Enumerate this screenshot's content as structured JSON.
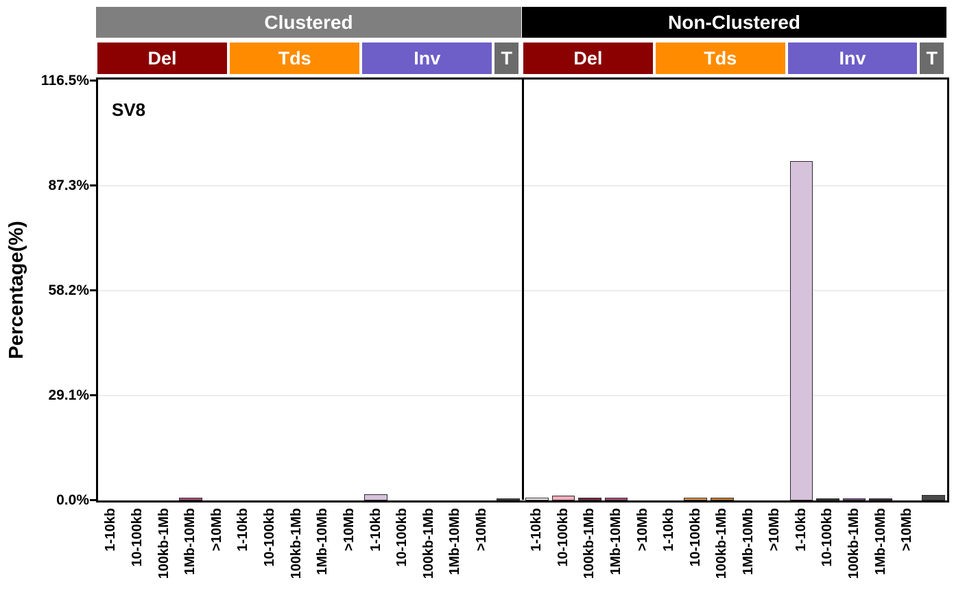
{
  "chart_data": {
    "type": "bar",
    "title": "SV8",
    "ylabel": "Percentage(%)",
    "ylim": [
      0,
      116.5
    ],
    "grid": "horizontal-light",
    "legend": "none",
    "ytick_labels": [
      "0.0%",
      "29.1%",
      "58.2%",
      "87.3%",
      "116.5%"
    ],
    "ytick_values": [
      0,
      29.1,
      58.2,
      87.3,
      116.5
    ],
    "size_bins": [
      "1-10kb",
      "10-100kb",
      "100kb-1Mb",
      "1Mb-10Mb",
      ">10Mb"
    ],
    "bar_outline_color": "#2B2B2B",
    "gridline_color": "#ECECEC",
    "bar_fill_palettes": {
      "Del": [
        "#F7F2F2",
        "#F9AFBC",
        "#7E2844",
        "#BA4E88",
        "#D87FAC"
      ],
      "Tds": [
        "#F8E3C3",
        "#E89B4C",
        "#D8842F",
        "#C06A20",
        "#A85515"
      ],
      "Inv": [
        "#D6C2DB",
        "#3A3A3A",
        "#8A63A0",
        "#4A2F63",
        "#4C2B66"
      ],
      "T": [
        "#4A4A4A"
      ]
    },
    "panels": [
      {
        "label": "Clustered",
        "header_color": "#7F7F7F",
        "groups": [
          {
            "label": "Del",
            "header_color": "#8B0000",
            "values": [
              0,
              0,
              0,
              0.3,
              0
            ]
          },
          {
            "label": "Tds",
            "header_color": "#FF8C00",
            "values": [
              0,
              0,
              0,
              0,
              0
            ]
          },
          {
            "label": "Inv",
            "header_color": "#6E5EC8",
            "values": [
              1.3,
              0,
              0,
              0,
              0
            ]
          },
          {
            "label": "T",
            "header_color": "#6B6B6B",
            "values": [
              0.2
            ]
          }
        ]
      },
      {
        "label": "Non-Clustered",
        "header_color": "#000000",
        "groups": [
          {
            "label": "Del",
            "header_color": "#8B0000",
            "values": [
              0.3,
              0.9,
              0.4,
              0.4,
              0
            ]
          },
          {
            "label": "Tds",
            "header_color": "#FF8C00",
            "values": [
              0,
              0.4,
              0.4,
              0,
              0
            ]
          },
          {
            "label": "Inv",
            "header_color": "#6E5EC8",
            "values": [
              93.9,
              0.2,
              0.1,
              0.15,
              0
            ]
          },
          {
            "label": "T",
            "header_color": "#6B6B6B",
            "values": [
              1.2
            ]
          }
        ]
      }
    ]
  }
}
